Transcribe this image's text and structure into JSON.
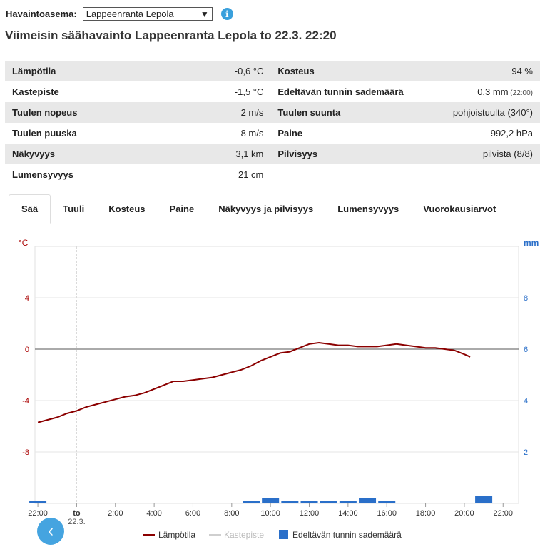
{
  "station": {
    "label": "Havaintoasema:",
    "selected": "Lappeenranta Lepola"
  },
  "title": "Viimeisin säähavainto Lappeenranta Lepola to 22.3. 22:20",
  "observations": [
    {
      "k1": "Lämpötila",
      "v1": "-0,6 °C",
      "k2": "Kosteus",
      "v2": "94 %",
      "v2note": ""
    },
    {
      "k1": "Kastepiste",
      "v1": "-1,5 °C",
      "k2": "Edeltävän tunnin sademäärä",
      "v2": "0,3 mm",
      "v2note": "(22:00)"
    },
    {
      "k1": "Tuulen nopeus",
      "v1": "2 m/s",
      "k2": "Tuulen suunta",
      "v2": "pohjoistuulta (340°)",
      "v2note": ""
    },
    {
      "k1": "Tuulen puuska",
      "v1": "8 m/s",
      "k2": "Paine",
      "v2": "992,2 hPa",
      "v2note": ""
    },
    {
      "k1": "Näkyvyys",
      "v1": "3,1 km",
      "k2": "Pilvisyys",
      "v2": "pilvistä (8/8)",
      "v2note": ""
    },
    {
      "k1": "Lumensyvyys",
      "v1": "21 cm",
      "k2": "",
      "v2": "",
      "v2note": ""
    }
  ],
  "tabs": [
    "Sää",
    "Tuuli",
    "Kosteus",
    "Paine",
    "Näkyvyys ja pilvisyys",
    "Lumensyvyys",
    "Vuorokausiarvot"
  ],
  "active_tab": 0,
  "icons": {
    "info": "info-icon",
    "back": "chevron-left-icon",
    "dropdown": "chevron-down-icon"
  },
  "chart_data": {
    "type": "line",
    "x_ticks": [
      "22:00",
      "to",
      "2:00",
      "4:00",
      "6:00",
      "8:00",
      "10:00",
      "12:00",
      "14:00",
      "16:00",
      "18:00",
      "20:00",
      "22:00"
    ],
    "x_tick_sub": "22.3.",
    "y_left": {
      "unit": "°C",
      "ticks": [
        4,
        0,
        -4,
        -8
      ],
      "range": [
        -12,
        8
      ],
      "color": "#aa0000"
    },
    "y_right": {
      "unit": "mm",
      "ticks": [
        8,
        6,
        4,
        2
      ],
      "range": [
        0,
        10
      ],
      "color": "#2a6fc9"
    },
    "grid": true,
    "legend_position": "bottom",
    "series": [
      {
        "name": "Lämpötila",
        "type": "line",
        "color": "#8b0000",
        "axis": "left",
        "x": [
          0,
          0.5,
          1,
          1.5,
          2,
          2.5,
          3,
          3.5,
          4,
          4.5,
          5,
          5.5,
          6,
          6.5,
          7,
          7.5,
          8,
          8.5,
          9,
          9.5,
          10,
          10.5,
          11,
          11.5,
          12,
          12.5,
          13,
          13.5,
          14,
          14.5,
          15,
          15.5,
          16,
          16.5,
          17,
          17.5,
          18,
          18.5,
          19,
          19.5,
          20,
          20.5,
          21,
          21.5,
          22,
          22.3
        ],
        "values": [
          -5.7,
          -5.5,
          -5.3,
          -5.0,
          -4.8,
          -4.5,
          -4.3,
          -4.1,
          -3.9,
          -3.7,
          -3.6,
          -3.4,
          -3.1,
          -2.8,
          -2.5,
          -2.5,
          -2.4,
          -2.3,
          -2.2,
          -2.0,
          -1.8,
          -1.6,
          -1.3,
          -0.9,
          -0.6,
          -0.3,
          -0.2,
          0.1,
          0.4,
          0.5,
          0.4,
          0.3,
          0.3,
          0.2,
          0.2,
          0.2,
          0.3,
          0.4,
          0.3,
          0.2,
          0.1,
          0.1,
          0.0,
          -0.1,
          -0.4,
          -0.6
        ]
      },
      {
        "name": "Kastepiste",
        "type": "line",
        "color": "#cccccc",
        "axis": "left",
        "hidden": true,
        "x": [],
        "values": []
      },
      {
        "name": "Edeltävän tunnin sademäärä",
        "type": "bar",
        "color": "#2a6fc9",
        "axis": "right",
        "x": [
          0,
          11,
          12,
          13,
          14,
          15,
          16,
          17,
          18,
          23
        ],
        "values": [
          0.1,
          0.1,
          0.2,
          0.1,
          0.1,
          0.1,
          0.1,
          0.2,
          0.1,
          0.3
        ]
      }
    ]
  }
}
